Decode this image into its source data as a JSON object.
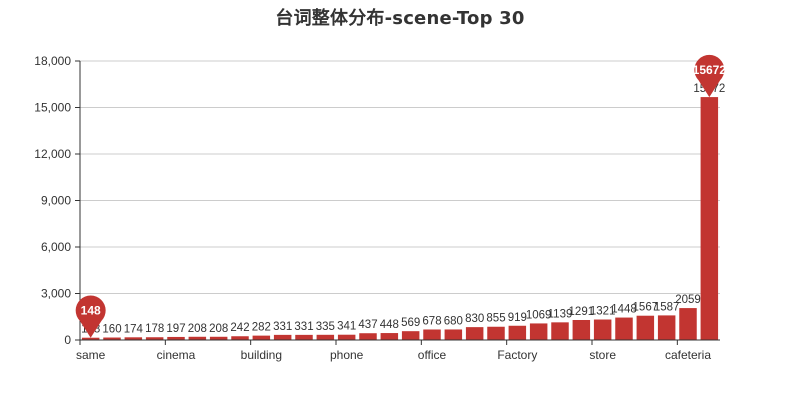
{
  "chart_data": {
    "type": "bar",
    "title": "台词整体分布-scene-Top 30",
    "xlabel": "",
    "ylabel": "",
    "ylim": [
      0,
      18000
    ],
    "yticks": [
      0,
      3000,
      6000,
      9000,
      12000,
      15000,
      18000
    ],
    "ytick_labels": [
      "0",
      "3,000",
      "6,000",
      "9,000",
      "12,000",
      "15,000",
      "18,000"
    ],
    "grid": true,
    "bar_color": "#c23531",
    "x_tick_labels": [
      {
        "index": 0,
        "label": "same"
      },
      {
        "index": 4,
        "label": "cinema"
      },
      {
        "index": 8,
        "label": "building"
      },
      {
        "index": 12,
        "label": "phone"
      },
      {
        "index": 16,
        "label": "office"
      },
      {
        "index": 20,
        "label": "Factory"
      },
      {
        "index": 24,
        "label": "store"
      },
      {
        "index": 28,
        "label": "cafeteria"
      }
    ],
    "values": [
      148,
      160,
      174,
      178,
      197,
      208,
      208,
      242,
      282,
      331,
      331,
      335,
      341,
      437,
      448,
      569,
      678,
      680,
      830,
      855,
      919,
      1069,
      1139,
      1291,
      1321,
      1448,
      1567,
      1587,
      2059,
      15672
    ],
    "markers": [
      {
        "type": "min",
        "index": 0,
        "label": "148"
      },
      {
        "type": "max",
        "index": 29,
        "label": "15672"
      }
    ]
  }
}
